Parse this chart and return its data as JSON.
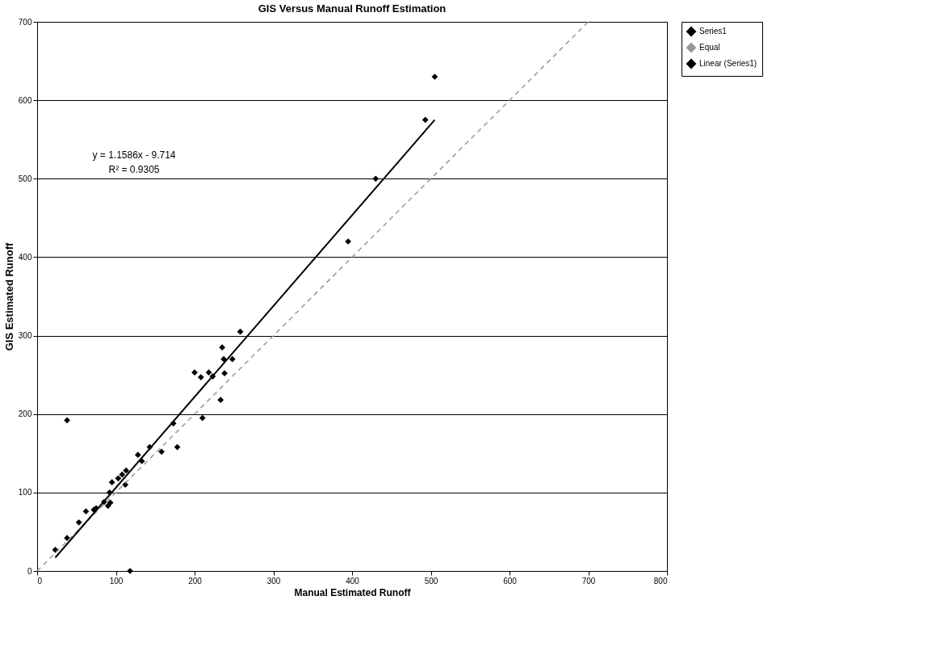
{
  "chart_data": {
    "type": "scatter",
    "title": "GIS Versus Manual Runoff Estimation",
    "xlabel": "Manual Estimated Runoff",
    "ylabel": "GIS Estimated Runoff",
    "xlim": [
      0,
      800
    ],
    "xticks": [
      0,
      100,
      200,
      300,
      400,
      500,
      600,
      700,
      800
    ],
    "ylim": [
      0,
      700
    ],
    "yticks": [
      0,
      100,
      200,
      300,
      400,
      500,
      600,
      700
    ],
    "grid": "y",
    "legend": "right",
    "annotations": [
      "y = 1.1586x - 9.714",
      "R² = 0.9305"
    ],
    "series": [
      {
        "name": "Series1",
        "type": "scatter",
        "marker": "diamond",
        "color": "#000000",
        "x": [
          23,
          38,
          38,
          53,
          62,
          72,
          75,
          85,
          90,
          92,
          95,
          93,
          103,
          108,
          112,
          113,
          118,
          128,
          133,
          143,
          158,
          173,
          178,
          200,
          208,
          210,
          218,
          223,
          233,
          235,
          237,
          238,
          248,
          258,
          395,
          430,
          493,
          505
        ],
        "values": [
          27,
          42,
          192,
          62,
          76,
          78,
          80,
          88,
          83,
          100,
          113,
          87,
          118,
          123,
          110,
          128,
          0,
          148,
          140,
          158,
          152,
          188,
          158,
          253,
          247,
          195,
          253,
          248,
          218,
          285,
          270,
          252,
          270,
          305,
          420,
          500,
          575,
          630
        ]
      },
      {
        "name": "Equal",
        "type": "line",
        "line_style": "dashed",
        "color": "#999999",
        "x": [
          0,
          700
        ],
        "values": [
          0,
          700
        ]
      },
      {
        "name": "Linear (Series1)",
        "type": "line",
        "line_style": "solid",
        "color": "#000000",
        "x": [
          23,
          505
        ],
        "values": [
          17,
          575
        ]
      }
    ]
  }
}
